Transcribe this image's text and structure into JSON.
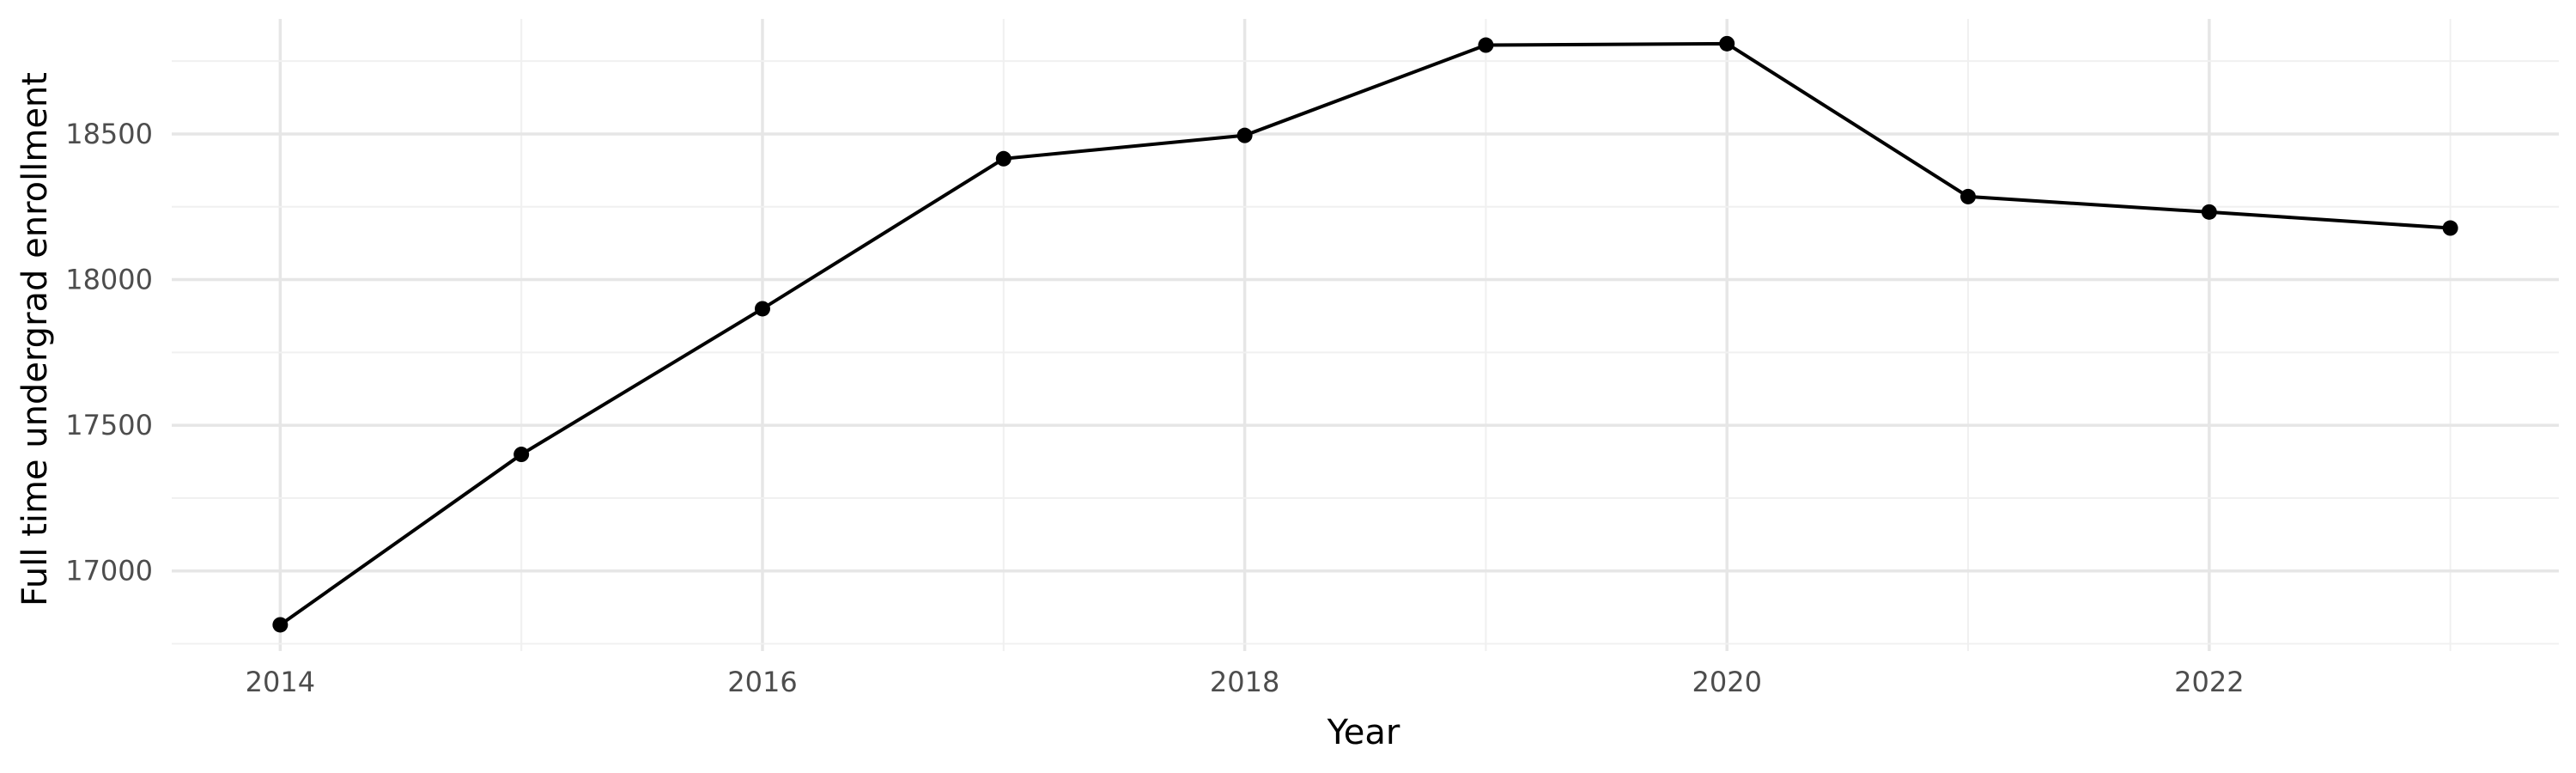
{
  "chart_data": {
    "type": "line",
    "title": "",
    "xlabel": "Year",
    "ylabel": "Full time undergrad enrollment",
    "x": [
      2014,
      2015,
      2016,
      2017,
      2018,
      2019,
      2020,
      2021,
      2022,
      2023
    ],
    "series": [
      {
        "values": [
          16815,
          17400,
          17900,
          18415,
          18495,
          18805,
          18810,
          18285,
          18232,
          18177
        ]
      }
    ],
    "xlim": [
      2013.55,
      2023.45
    ],
    "ylim": [
      16725,
      18895
    ],
    "x_ticks": [
      2014,
      2016,
      2018,
      2020,
      2022
    ],
    "x_tick_labels": [
      "2014",
      "2016",
      "2018",
      "2020",
      "2022"
    ],
    "y_ticks": [
      17000,
      17500,
      18000,
      18500
    ],
    "y_tick_labels": [
      "17000",
      "17500",
      "18000",
      "18500"
    ],
    "grid": true,
    "legend": "none",
    "colors": {
      "line": "#000000",
      "point": "#000000",
      "grid": "#e6e6e6",
      "background": "#ffffff"
    }
  }
}
